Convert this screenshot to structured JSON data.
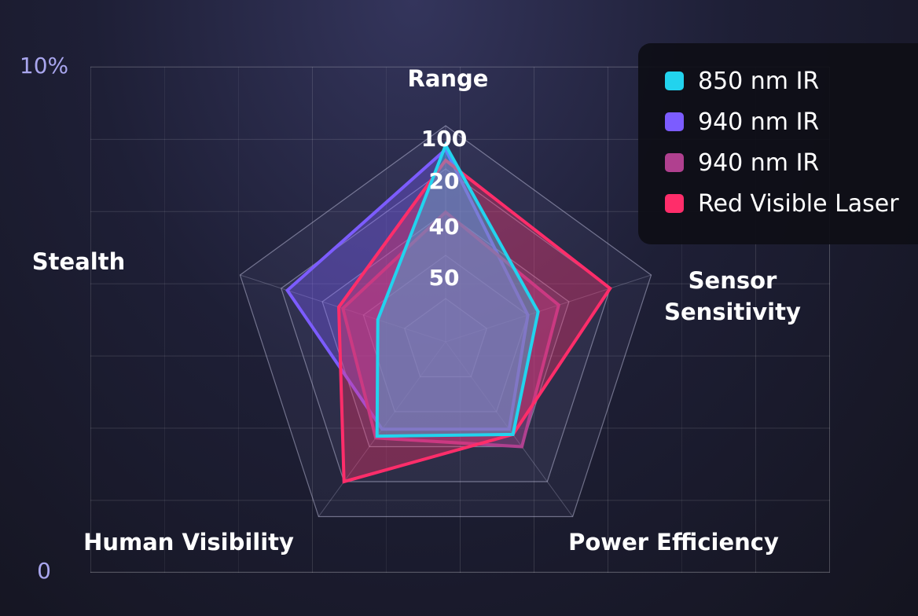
{
  "chart_data": {
    "type": "radar",
    "axes": [
      "Range",
      "Sensor Sensitivity",
      "Power Efficiency",
      "Human Visibility",
      "Stealth"
    ],
    "rlim": [
      0,
      100
    ],
    "rtick_labels": [
      "100",
      "20",
      "40",
      "50"
    ],
    "series": [
      {
        "name": "850 nm IR",
        "color": "#22d3ee",
        "values": [
          91,
          45,
          53,
          54,
          33
        ]
      },
      {
        "name": "940 nm IR",
        "color": "#7c5cff",
        "values": [
          89,
          40,
          50,
          50,
          77
        ]
      },
      {
        "name": "940 nm IR",
        "color": "#b0408f",
        "values": [
          60,
          55,
          60,
          55,
          50
        ]
      },
      {
        "name": "Red Visible Laser",
        "color": "#ff2d6a",
        "values": [
          84,
          80,
          53,
          80,
          52
        ]
      }
    ],
    "background_axis": {
      "ylim": [
        0,
        10
      ],
      "yticks": [
        0,
        {
          "value": 10,
          "label": "10%"
        }
      ],
      "grid": true
    },
    "legend": "top-right"
  }
}
